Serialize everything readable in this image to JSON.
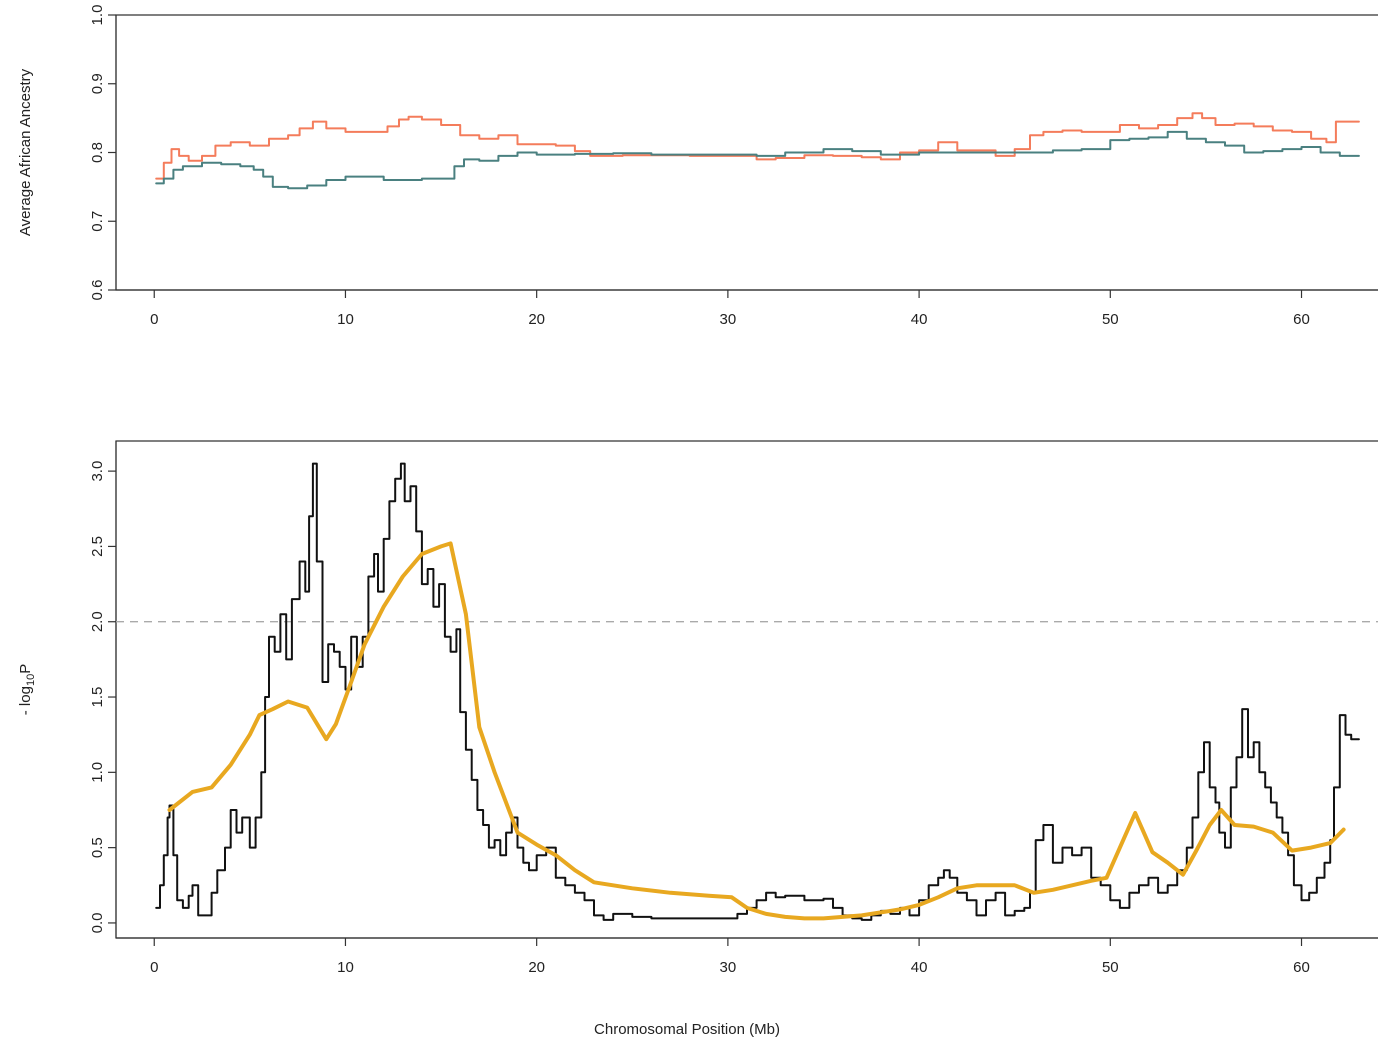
{
  "chart_data": [
    {
      "type": "line",
      "title": "",
      "xlabel": "",
      "ylabel": "Average African Ancestry",
      "xlim": [
        -2,
        64
      ],
      "ylim": [
        0.6,
        1.0
      ],
      "xticks": [
        0,
        10,
        20,
        30,
        40,
        50,
        60
      ],
      "yticks": [
        0.6,
        0.7,
        0.8,
        0.9,
        1.0
      ],
      "xtick_labels": [
        "0",
        "10",
        "20",
        "30",
        "40",
        "50",
        "60"
      ],
      "ytick_labels": [
        "0.6",
        "0.7",
        "0.8",
        "0.9",
        "1.0"
      ],
      "grid": false,
      "series": [
        {
          "color": "#f47c5b",
          "x": [
            0.1,
            0.5,
            0.9,
            1.3,
            1.8,
            2.5,
            3.2,
            4.0,
            5.0,
            6.0,
            7.0,
            7.6,
            8.3,
            9.0,
            10.0,
            11.0,
            12.2,
            12.8,
            13.3,
            14.0,
            15.0,
            16.0,
            17.0,
            18.0,
            19.0,
            20.0,
            21.0,
            22.0,
            22.8,
            23.5,
            24.5,
            26.0,
            28.0,
            30.0,
            31.5,
            32.5,
            34.0,
            35.5,
            37.0,
            38.0,
            39.0,
            40.0,
            41.0,
            42.0,
            43.0,
            44.0,
            45.0,
            45.8,
            46.5,
            47.5,
            48.5,
            49.5,
            50.5,
            51.5,
            52.5,
            53.5,
            54.3,
            54.8,
            55.5,
            56.5,
            57.5,
            58.5,
            59.5,
            60.5,
            61.3,
            61.8,
            62.2,
            62.6,
            63.0
          ],
          "values": [
            0.762,
            0.785,
            0.805,
            0.795,
            0.788,
            0.795,
            0.81,
            0.815,
            0.81,
            0.82,
            0.825,
            0.835,
            0.845,
            0.835,
            0.83,
            0.83,
            0.838,
            0.848,
            0.852,
            0.848,
            0.84,
            0.825,
            0.82,
            0.825,
            0.812,
            0.812,
            0.81,
            0.802,
            0.795,
            0.795,
            0.796,
            0.796,
            0.795,
            0.795,
            0.79,
            0.792,
            0.796,
            0.795,
            0.793,
            0.79,
            0.8,
            0.803,
            0.815,
            0.803,
            0.803,
            0.795,
            0.805,
            0.825,
            0.83,
            0.832,
            0.83,
            0.83,
            0.84,
            0.835,
            0.84,
            0.85,
            0.857,
            0.85,
            0.84,
            0.842,
            0.838,
            0.832,
            0.83,
            0.82,
            0.815,
            0.845,
            0.845,
            0.845,
            0.845
          ]
        },
        {
          "color": "#4a8080",
          "x": [
            0.1,
            0.5,
            1.0,
            1.5,
            2.5,
            3.5,
            4.5,
            5.2,
            5.7,
            6.2,
            7.0,
            8.0,
            9.0,
            10.0,
            11.0,
            12.0,
            13.0,
            14.0,
            15.0,
            15.7,
            16.2,
            17.0,
            18.0,
            19.0,
            20.0,
            22.0,
            24.0,
            26.0,
            28.0,
            30.0,
            31.5,
            33.0,
            35.0,
            36.5,
            38.0,
            40.0,
            42.0,
            44.0,
            45.5,
            47.0,
            48.5,
            50.0,
            51.0,
            52.0,
            53.0,
            54.0,
            55.0,
            56.0,
            57.0,
            58.0,
            59.0,
            60.0,
            61.0,
            62.0,
            63.0
          ],
          "values": [
            0.755,
            0.762,
            0.775,
            0.78,
            0.785,
            0.783,
            0.78,
            0.775,
            0.765,
            0.75,
            0.748,
            0.752,
            0.76,
            0.765,
            0.765,
            0.76,
            0.76,
            0.762,
            0.762,
            0.78,
            0.79,
            0.788,
            0.795,
            0.8,
            0.797,
            0.798,
            0.799,
            0.797,
            0.797,
            0.797,
            0.795,
            0.8,
            0.805,
            0.802,
            0.797,
            0.8,
            0.8,
            0.8,
            0.8,
            0.803,
            0.805,
            0.818,
            0.82,
            0.822,
            0.83,
            0.82,
            0.815,
            0.81,
            0.8,
            0.802,
            0.805,
            0.808,
            0.8,
            0.795,
            0.795
          ]
        }
      ]
    },
    {
      "type": "line",
      "title": "",
      "xlabel": "Chromosomal Position (Mb)",
      "ylabel": "- log",
      "ylabel_subscript": "10",
      "ylabel_suffix": "P",
      "xlim": [
        -2,
        64
      ],
      "ylim": [
        -0.1,
        3.2
      ],
      "xticks": [
        0,
        10,
        20,
        30,
        40,
        50,
        60
      ],
      "yticks": [
        0.0,
        0.5,
        1.0,
        1.5,
        2.0,
        2.5,
        3.0
      ],
      "xtick_labels": [
        "0",
        "10",
        "20",
        "30",
        "40",
        "50",
        "60"
      ],
      "ytick_labels": [
        "0.0",
        "0.5",
        "1.0",
        "1.5",
        "2.0",
        "2.5",
        "3.0"
      ],
      "grid": false,
      "reference_line": {
        "y": 2.0,
        "style": "dashed",
        "color": "#aaaaaa"
      },
      "series": [
        {
          "color": "#111111",
          "x": [
            0.1,
            0.3,
            0.5,
            0.7,
            0.8,
            1.0,
            1.2,
            1.5,
            1.8,
            2.0,
            2.3,
            2.6,
            3.0,
            3.3,
            3.7,
            4.0,
            4.3,
            4.6,
            5.0,
            5.3,
            5.6,
            5.8,
            6.0,
            6.3,
            6.6,
            6.9,
            7.2,
            7.6,
            7.9,
            8.1,
            8.3,
            8.5,
            8.8,
            9.1,
            9.4,
            9.7,
            10.0,
            10.3,
            10.6,
            10.9,
            11.2,
            11.5,
            11.7,
            12.0,
            12.3,
            12.6,
            12.9,
            13.1,
            13.4,
            13.7,
            14.0,
            14.3,
            14.6,
            14.9,
            15.2,
            15.5,
            15.8,
            16.0,
            16.3,
            16.6,
            16.9,
            17.2,
            17.5,
            17.8,
            18.1,
            18.4,
            18.7,
            19.0,
            19.3,
            19.6,
            20.0,
            20.5,
            21.0,
            21.5,
            22.0,
            22.5,
            23.0,
            23.5,
            24.0,
            25.0,
            26.0,
            27.0,
            28.0,
            29.0,
            30.0,
            30.5,
            31.0,
            31.5,
            32.0,
            32.5,
            33.0,
            34.0,
            35.0,
            35.5,
            36.0,
            36.5,
            37.0,
            37.5,
            38.0,
            38.5,
            39.0,
            39.5,
            40.0,
            40.5,
            41.0,
            41.3,
            41.6,
            42.0,
            42.5,
            43.0,
            43.5,
            44.0,
            44.5,
            45.0,
            45.5,
            45.8,
            46.1,
            46.5,
            47.0,
            47.5,
            48.0,
            48.5,
            49.0,
            49.5,
            50.0,
            50.5,
            51.0,
            51.5,
            52.0,
            52.5,
            53.0,
            53.5,
            54.0,
            54.3,
            54.6,
            54.9,
            55.2,
            55.5,
            55.7,
            56.0,
            56.3,
            56.6,
            56.9,
            57.2,
            57.5,
            57.8,
            58.1,
            58.4,
            58.7,
            59.0,
            59.3,
            59.6,
            60.0,
            60.4,
            60.8,
            61.2,
            61.5,
            61.7,
            62.0,
            62.3,
            62.6,
            63.0
          ],
          "values": [
            0.1,
            0.25,
            0.45,
            0.7,
            0.78,
            0.45,
            0.15,
            0.1,
            0.18,
            0.25,
            0.05,
            0.05,
            0.2,
            0.35,
            0.5,
            0.75,
            0.6,
            0.7,
            0.5,
            0.7,
            1.0,
            1.5,
            1.9,
            1.8,
            2.05,
            1.75,
            2.15,
            2.4,
            2.2,
            2.7,
            3.05,
            2.4,
            1.6,
            1.85,
            1.8,
            1.7,
            1.55,
            1.9,
            1.7,
            1.9,
            2.3,
            2.45,
            2.2,
            2.55,
            2.8,
            2.95,
            3.05,
            2.8,
            2.9,
            2.6,
            2.25,
            2.35,
            2.1,
            2.25,
            1.9,
            1.8,
            1.95,
            1.4,
            1.15,
            0.95,
            0.75,
            0.65,
            0.5,
            0.55,
            0.45,
            0.6,
            0.7,
            0.5,
            0.4,
            0.35,
            0.45,
            0.5,
            0.3,
            0.25,
            0.2,
            0.15,
            0.05,
            0.02,
            0.06,
            0.04,
            0.03,
            0.03,
            0.03,
            0.03,
            0.03,
            0.06,
            0.1,
            0.15,
            0.2,
            0.17,
            0.18,
            0.15,
            0.16,
            0.1,
            0.05,
            0.03,
            0.02,
            0.05,
            0.08,
            0.06,
            0.1,
            0.05,
            0.15,
            0.25,
            0.3,
            0.35,
            0.3,
            0.2,
            0.15,
            0.05,
            0.15,
            0.2,
            0.05,
            0.08,
            0.1,
            0.2,
            0.55,
            0.65,
            0.4,
            0.5,
            0.45,
            0.5,
            0.3,
            0.25,
            0.15,
            0.1,
            0.2,
            0.25,
            0.3,
            0.2,
            0.25,
            0.35,
            0.5,
            0.7,
            1.0,
            1.2,
            0.9,
            0.8,
            0.6,
            0.5,
            0.9,
            1.1,
            1.42,
            1.1,
            1.2,
            1.0,
            0.9,
            0.8,
            0.7,
            0.6,
            0.45,
            0.25,
            0.15,
            0.2,
            0.3,
            0.4,
            0.55,
            0.9,
            1.38,
            1.25,
            1.22,
            1.22
          ]
        },
        {
          "color": "#e8a820",
          "x": [
            0.8,
            2.0,
            3.0,
            4.0,
            5.0,
            5.5,
            6.2,
            7.0,
            8.0,
            9.0,
            9.5,
            10.3,
            11.0,
            12.0,
            13.0,
            14.0,
            15.0,
            15.5,
            16.3,
            17.0,
            17.8,
            19.0,
            20.0,
            21.0,
            22.0,
            23.0,
            25.0,
            27.0,
            29.0,
            30.2,
            31.0,
            32.0,
            33.0,
            34.0,
            35.0,
            36.0,
            37.0,
            38.0,
            39.0,
            40.0,
            41.0,
            42.0,
            43.0,
            44.0,
            45.0,
            46.0,
            47.0,
            48.0,
            49.0,
            49.8,
            50.5,
            51.3,
            52.2,
            53.0,
            53.8,
            54.5,
            55.2,
            55.8,
            56.5,
            57.5,
            58.5,
            59.5,
            60.5,
            61.5,
            62.2
          ],
          "values": [
            0.75,
            0.87,
            0.9,
            1.05,
            1.25,
            1.38,
            1.42,
            1.47,
            1.43,
            1.22,
            1.32,
            1.6,
            1.85,
            2.1,
            2.3,
            2.45,
            2.5,
            2.52,
            2.05,
            1.3,
            1.0,
            0.6,
            0.52,
            0.45,
            0.35,
            0.27,
            0.23,
            0.2,
            0.18,
            0.17,
            0.1,
            0.06,
            0.04,
            0.03,
            0.03,
            0.04,
            0.05,
            0.07,
            0.09,
            0.12,
            0.17,
            0.23,
            0.25,
            0.25,
            0.25,
            0.2,
            0.22,
            0.25,
            0.28,
            0.3,
            0.5,
            0.73,
            0.47,
            0.4,
            0.32,
            0.48,
            0.65,
            0.75,
            0.65,
            0.64,
            0.6,
            0.48,
            0.5,
            0.53,
            0.62
          ]
        }
      ]
    }
  ]
}
